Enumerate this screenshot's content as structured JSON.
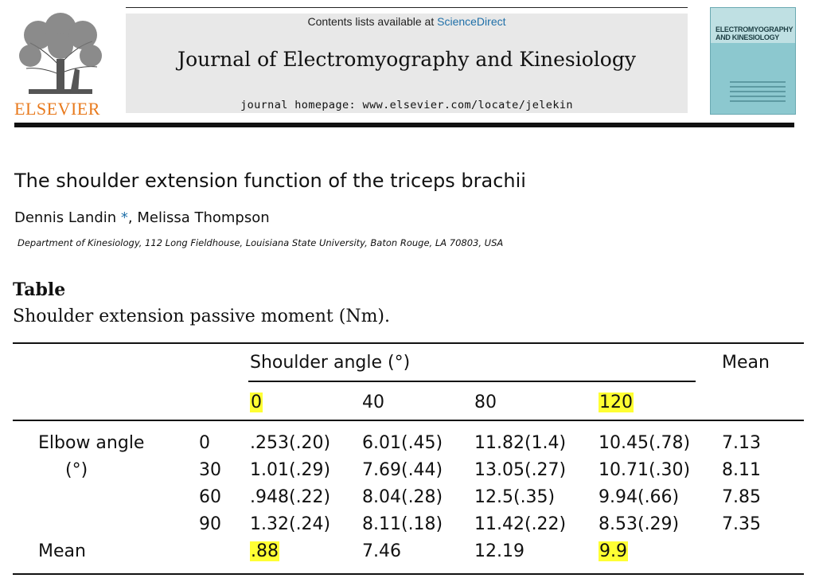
{
  "masthead": {
    "contents_prefix": "Contents lists available at ",
    "contents_link": "ScienceDirect",
    "journal_title": "Journal of Electromyography and Kinesiology",
    "homepage": "journal homepage: www.elsevier.com/locate/jelekin",
    "publisher": "ELSEVIER",
    "cover_title": "ELECTROMYOGRAPHY AND KINESIOLOGY"
  },
  "article": {
    "title": "The shoulder extension function of the triceps brachii",
    "author_1": "Dennis Landin",
    "author_star": " *",
    "author_sep": ", ",
    "author_2": "Melissa Thompson",
    "affiliation": "Department of Kinesiology, 112 Long Fieldhouse, Louisiana State University, Baton Rouge, LA 70803, USA"
  },
  "table": {
    "label": "Table",
    "caption": "Shoulder extension passive moment (Nm).",
    "shoulder_header": "Shoulder angle (°)",
    "mean_header": "Mean",
    "shoulder_angles": [
      "0",
      "40",
      "80",
      "120"
    ],
    "elbow_label_1": "Elbow angle",
    "elbow_label_2": "(°)",
    "rows": [
      {
        "elbow": "0",
        "cells": [
          ".253(.20)",
          "6.01(.45)",
          "11.82(1.4)",
          "10.45(.78)"
        ],
        "mean": "7.13"
      },
      {
        "elbow": "30",
        "cells": [
          "1.01(.29)",
          "7.69(.44)",
          "13.05(.27)",
          "10.71(.30)"
        ],
        "mean": "8.11"
      },
      {
        "elbow": "60",
        "cells": [
          ".948(.22)",
          "8.04(.28)",
          "12.5(.35)",
          "9.94(.66)"
        ],
        "mean": "7.85"
      },
      {
        "elbow": "90",
        "cells": [
          "1.32(.24)",
          "8.11(.18)",
          "11.42(.22)",
          "8.53(.29)"
        ],
        "mean": "7.35"
      }
    ],
    "mean_row_label": "Mean",
    "column_means": [
      ".88",
      "7.46",
      "12.19",
      "9.9"
    ],
    "highlight_color": "#ffff33"
  }
}
